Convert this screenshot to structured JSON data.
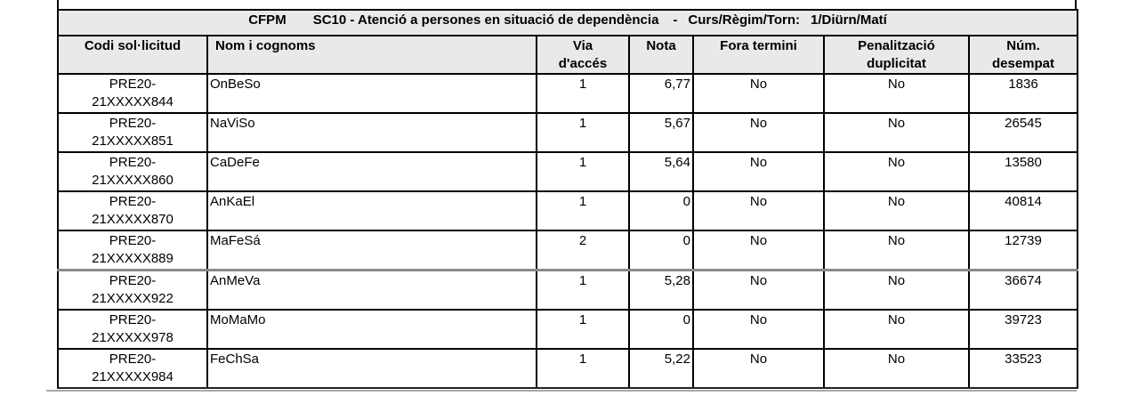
{
  "title": {
    "program": "CFPM",
    "course": "SC10 - Atenció a persones en situació de dependència",
    "separator": "-",
    "regim_label": "Curs/Règim/Torn:",
    "regim_value": "1/Diürn/Matí"
  },
  "table": {
    "columns": [
      {
        "id": "codi",
        "lines": [
          "Codi sol·licitud"
        ]
      },
      {
        "id": "nom",
        "lines": [
          "Nom i cognoms"
        ]
      },
      {
        "id": "via",
        "lines": [
          "Via",
          "d'accés"
        ]
      },
      {
        "id": "nota",
        "lines": [
          "Nota"
        ]
      },
      {
        "id": "fora",
        "lines": [
          "Fora termini"
        ]
      },
      {
        "id": "pen",
        "lines": [
          "Penalització",
          "duplicitat"
        ]
      },
      {
        "id": "num",
        "lines": [
          "Núm.",
          "desempat"
        ]
      }
    ],
    "rows": [
      {
        "codi": "PRE20-21XXXXX844",
        "nom": "OnBeSo",
        "via": "1",
        "nota": "6,77",
        "fora_termini": "No",
        "penalitzacio": "No",
        "desempat": "1836"
      },
      {
        "codi": "PRE20-21XXXXX851",
        "nom": "NaViSo",
        "via": "1",
        "nota": "5,67",
        "fora_termini": "No",
        "penalitzacio": "No",
        "desempat": "26545"
      },
      {
        "codi": "PRE20-21XXXXX860",
        "nom": "CaDeFe",
        "via": "1",
        "nota": "5,64",
        "fora_termini": "No",
        "penalitzacio": "No",
        "desempat": "13580"
      },
      {
        "codi": "PRE20-21XXXXX870",
        "nom": "AnKaEl",
        "via": "1",
        "nota": "0",
        "fora_termini": "No",
        "penalitzacio": "No",
        "desempat": "40814"
      },
      {
        "codi": "PRE20-21XXXXX889",
        "nom": "MaFeSá",
        "via": "2",
        "nota": "0",
        "fora_termini": "No",
        "penalitzacio": "No",
        "desempat": "12739"
      },
      {
        "codi": "PRE20-21XXXXX922",
        "nom": "AnMeVa",
        "via": "1",
        "nota": "5,28",
        "fora_termini": "No",
        "penalitzacio": "No",
        "desempat": "36674"
      },
      {
        "codi": "PRE20-21XXXXX978",
        "nom": "MoMaMo",
        "via": "1",
        "nota": "0",
        "fora_termini": "No",
        "penalitzacio": "No",
        "desempat": "39723"
      },
      {
        "codi": "PRE20-21XXXXX984",
        "nom": "FeChSa",
        "via": "1",
        "nota": "5,22",
        "fora_termini": "No",
        "penalitzacio": "No",
        "desempat": "33523"
      }
    ],
    "gray_separator_before_row_index": 5
  },
  "colors": {
    "header_bg": "#e9e9e9",
    "border_black": "#000000",
    "row_separator_gray": "#8a8a8a",
    "page_rule_gray": "#a8a8a8"
  }
}
